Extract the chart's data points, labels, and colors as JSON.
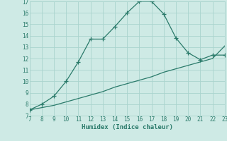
{
  "title": "",
  "xlabel": "Humidex (Indice chaleur)",
  "xlim": [
    7,
    23
  ],
  "ylim": [
    7,
    17
  ],
  "xticks": [
    7,
    8,
    9,
    10,
    11,
    12,
    13,
    14,
    15,
    16,
    17,
    18,
    19,
    20,
    21,
    22,
    23
  ],
  "yticks": [
    7,
    8,
    9,
    10,
    11,
    12,
    13,
    14,
    15,
    16,
    17
  ],
  "line_color": "#2a7a6a",
  "background_color": "#ceeae5",
  "grid_color": "#aad4ce",
  "curve_x": [
    7,
    8,
    9,
    10,
    11,
    12,
    13,
    14,
    15,
    16,
    17,
    18,
    19,
    20,
    21,
    22,
    23
  ],
  "curve_y": [
    7.5,
    8.0,
    8.7,
    10.0,
    11.7,
    13.7,
    13.7,
    14.8,
    16.0,
    17.0,
    17.0,
    15.9,
    13.8,
    12.5,
    11.9,
    12.3,
    12.3
  ],
  "line2_x": [
    7,
    8,
    9,
    10,
    11,
    12,
    13,
    14,
    15,
    16,
    17,
    18,
    19,
    20,
    21,
    22,
    23
  ],
  "line2_y": [
    7.5,
    7.7,
    7.9,
    8.2,
    8.5,
    8.8,
    9.1,
    9.5,
    9.8,
    10.1,
    10.4,
    10.8,
    11.1,
    11.4,
    11.7,
    12.0,
    13.1
  ],
  "font_family": "monospace",
  "tick_fontsize": 5.5,
  "xlabel_fontsize": 6.5
}
